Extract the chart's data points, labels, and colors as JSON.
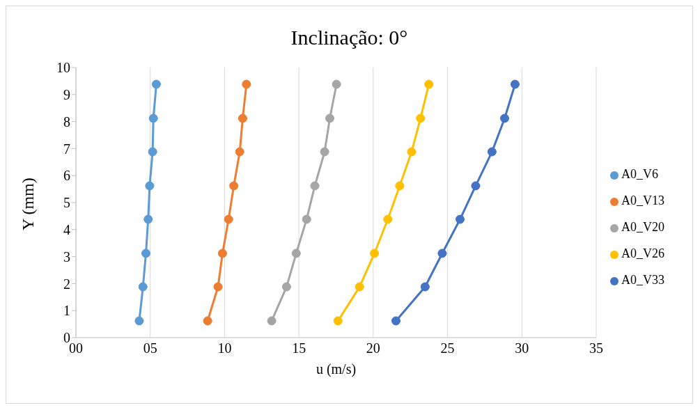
{
  "chart_data": {
    "type": "line",
    "title": "Inclinação: 0°",
    "xlabel": "u (m/s)",
    "ylabel": "Y (mm)",
    "xlim": [
      0,
      35
    ],
    "xticks": [
      {
        "value": 0,
        "label": "00"
      },
      {
        "value": 5,
        "label": "05"
      },
      10,
      15,
      20,
      25,
      30,
      35
    ],
    "ylim": [
      0,
      10
    ],
    "yticks": [
      0,
      1,
      2,
      3,
      4,
      5,
      6,
      7,
      8,
      9,
      10
    ],
    "grid": "x",
    "legend": "right",
    "marker": "circle",
    "line_style": "solid",
    "series": [
      {
        "name": "A0_V6",
        "color": "#5b9bd5",
        "x": [
          4.26,
          4.51,
          4.71,
          4.86,
          4.96,
          5.16,
          5.21,
          5.41
        ],
        "values": [
          0.62,
          1.88,
          3.12,
          4.38,
          5.62,
          6.88,
          8.12,
          9.38
        ]
      },
      {
        "name": "A0_V13",
        "color": "#ed7d31",
        "x": [
          8.86,
          9.56,
          9.86,
          10.27,
          10.62,
          11.02,
          11.22,
          11.47
        ],
        "values": [
          0.62,
          1.88,
          3.12,
          4.38,
          5.62,
          6.88,
          8.12,
          9.38
        ]
      },
      {
        "name": "A0_V20",
        "color": "#a5a5a5",
        "x": [
          13.17,
          14.17,
          14.82,
          15.52,
          16.07,
          16.73,
          17.08,
          17.53
        ],
        "values": [
          0.62,
          1.88,
          3.12,
          4.38,
          5.62,
          6.88,
          8.12,
          9.38
        ]
      },
      {
        "name": "A0_V26",
        "color": "#ffc000",
        "x": [
          17.63,
          19.08,
          20.08,
          20.98,
          21.78,
          22.58,
          23.18,
          23.74
        ],
        "values": [
          0.62,
          1.88,
          3.12,
          4.38,
          5.62,
          6.88,
          8.12,
          9.38
        ]
      },
      {
        "name": "A0_V33",
        "color": "#4472c4",
        "x": [
          21.53,
          23.49,
          24.64,
          25.84,
          26.89,
          27.99,
          28.84,
          29.54
        ],
        "values": [
          0.62,
          1.88,
          3.12,
          4.38,
          5.62,
          6.88,
          8.12,
          9.38
        ]
      }
    ]
  }
}
